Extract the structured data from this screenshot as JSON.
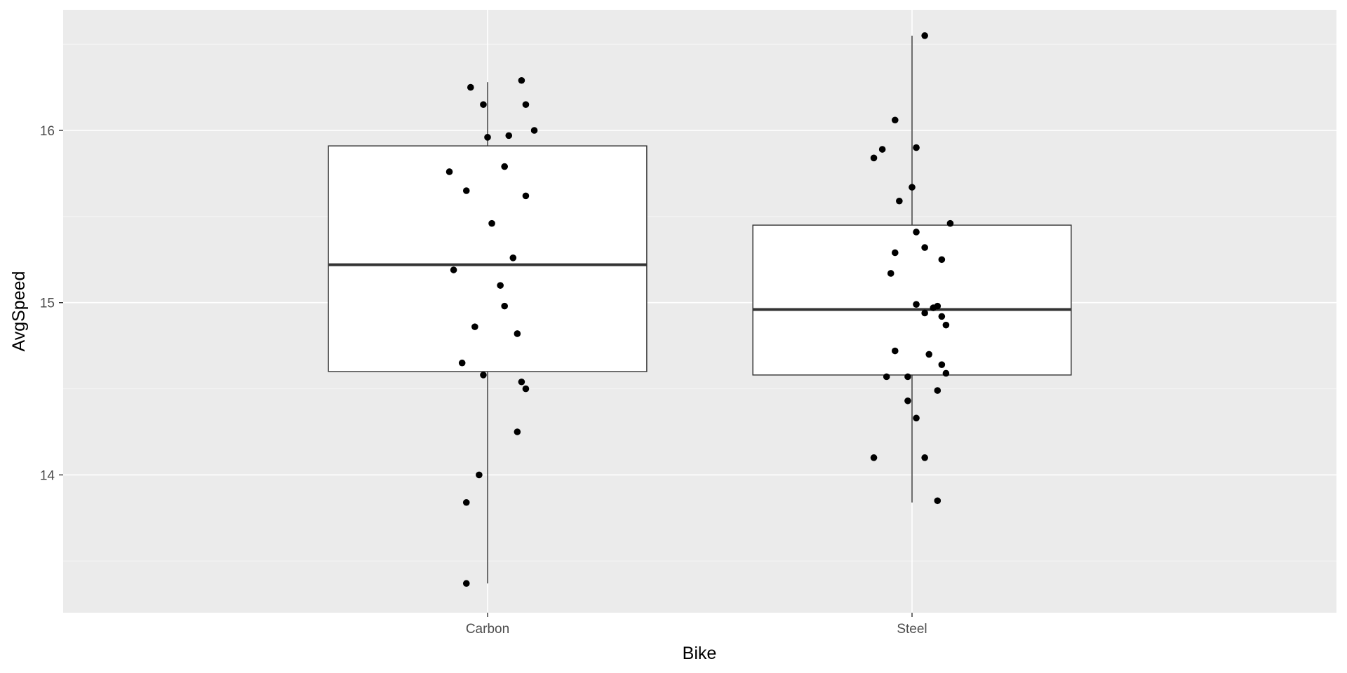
{
  "colors": {
    "panel_background": "#ebebeb",
    "major_grid": "#ffffff",
    "minor_grid": "#f5f5f5",
    "box_fill": "#ffffff",
    "box_outline": "#333333",
    "point": "#000000",
    "tick_label": "#4d4d4d",
    "axis_title": "#000000"
  },
  "chart_data": {
    "type": "boxplot",
    "xlabel": "Bike",
    "ylabel": "AvgSpeed",
    "ylim": [
      13.2,
      16.7
    ],
    "y_major_ticks": [
      14,
      15,
      16
    ],
    "y_minor_ticks": [
      13.5,
      14.5,
      15.5,
      16.5
    ],
    "categories": [
      "Carbon",
      "Steel"
    ],
    "grid": true,
    "legend": "none",
    "boxes": [
      {
        "category": "Carbon",
        "lower_whisker": 13.37,
        "q1": 14.6,
        "median": 15.22,
        "q3": 15.91,
        "upper_whisker": 16.28,
        "points": [
          {
            "jitter": -0.04,
            "y": 16.25
          },
          {
            "jitter": 0.08,
            "y": 16.29
          },
          {
            "jitter": -0.01,
            "y": 16.15
          },
          {
            "jitter": 0.09,
            "y": 16.15
          },
          {
            "jitter": 0.11,
            "y": 16.0
          },
          {
            "jitter": 0.05,
            "y": 15.97
          },
          {
            "jitter": 0.0,
            "y": 15.96
          },
          {
            "jitter": 0.04,
            "y": 15.79
          },
          {
            "jitter": -0.09,
            "y": 15.76
          },
          {
            "jitter": -0.05,
            "y": 15.65
          },
          {
            "jitter": 0.09,
            "y": 15.62
          },
          {
            "jitter": 0.01,
            "y": 15.46
          },
          {
            "jitter": 0.06,
            "y": 15.26
          },
          {
            "jitter": -0.08,
            "y": 15.19
          },
          {
            "jitter": 0.03,
            "y": 15.1
          },
          {
            "jitter": 0.04,
            "y": 14.98
          },
          {
            "jitter": -0.03,
            "y": 14.86
          },
          {
            "jitter": 0.07,
            "y": 14.82
          },
          {
            "jitter": -0.06,
            "y": 14.65
          },
          {
            "jitter": -0.01,
            "y": 14.58
          },
          {
            "jitter": 0.08,
            "y": 14.54
          },
          {
            "jitter": 0.09,
            "y": 14.5
          },
          {
            "jitter": 0.07,
            "y": 14.25
          },
          {
            "jitter": -0.02,
            "y": 14.0
          },
          {
            "jitter": -0.05,
            "y": 13.84
          },
          {
            "jitter": -0.05,
            "y": 13.37
          }
        ]
      },
      {
        "category": "Steel",
        "lower_whisker": 13.84,
        "q1": 14.58,
        "median": 14.96,
        "q3": 15.45,
        "upper_whisker": 16.55,
        "points": [
          {
            "jitter": 0.03,
            "y": 16.55
          },
          {
            "jitter": -0.04,
            "y": 16.06
          },
          {
            "jitter": 0.01,
            "y": 15.9
          },
          {
            "jitter": -0.07,
            "y": 15.89
          },
          {
            "jitter": -0.09,
            "y": 15.84
          },
          {
            "jitter": 0.0,
            "y": 15.67
          },
          {
            "jitter": -0.03,
            "y": 15.59
          },
          {
            "jitter": 0.09,
            "y": 15.46
          },
          {
            "jitter": 0.01,
            "y": 15.41
          },
          {
            "jitter": 0.03,
            "y": 15.32
          },
          {
            "jitter": -0.04,
            "y": 15.29
          },
          {
            "jitter": 0.07,
            "y": 15.25
          },
          {
            "jitter": -0.05,
            "y": 15.17
          },
          {
            "jitter": 0.01,
            "y": 14.99
          },
          {
            "jitter": 0.06,
            "y": 14.98
          },
          {
            "jitter": 0.05,
            "y": 14.97
          },
          {
            "jitter": 0.03,
            "y": 14.94
          },
          {
            "jitter": 0.07,
            "y": 14.92
          },
          {
            "jitter": 0.08,
            "y": 14.87
          },
          {
            "jitter": -0.04,
            "y": 14.72
          },
          {
            "jitter": 0.04,
            "y": 14.7
          },
          {
            "jitter": 0.07,
            "y": 14.64
          },
          {
            "jitter": 0.08,
            "y": 14.59
          },
          {
            "jitter": -0.06,
            "y": 14.57
          },
          {
            "jitter": -0.01,
            "y": 14.57
          },
          {
            "jitter": 0.06,
            "y": 14.49
          },
          {
            "jitter": -0.01,
            "y": 14.43
          },
          {
            "jitter": 0.01,
            "y": 14.33
          },
          {
            "jitter": -0.09,
            "y": 14.1
          },
          {
            "jitter": 0.03,
            "y": 14.1
          },
          {
            "jitter": 0.06,
            "y": 13.85
          }
        ]
      }
    ]
  }
}
